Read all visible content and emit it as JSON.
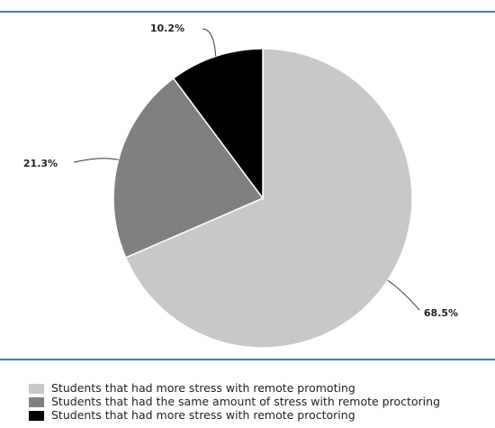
{
  "chart_data": {
    "type": "pie",
    "title": "",
    "slices": [
      {
        "name": "Students that had more stress with remote promoting",
        "value": 68.5,
        "label": "68.5%",
        "color": "#c8c8c8"
      },
      {
        "name": "Students that had the same amount of stress with remote proctoring",
        "value": 21.3,
        "label": "21.3%",
        "color": "#808080"
      },
      {
        "name": "Students that had more stress with remote proctoring",
        "value": 10.2,
        "label": "10.2%",
        "color": "#000000"
      }
    ],
    "legend_position": "bottom"
  },
  "colors": {
    "rule": "#3a82c4",
    "background": "#ffffff"
  }
}
